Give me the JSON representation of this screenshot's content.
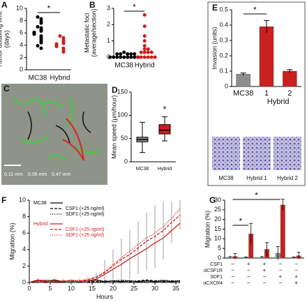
{
  "chart_data": [
    {
      "panel": "A",
      "type": "strip",
      "ylabel": [
        "Tumor doubling time",
        "(days)"
      ],
      "ylim": [
        0,
        10
      ],
      "yticks": [
        0,
        2,
        4,
        6,
        8,
        10
      ],
      "significance": "*",
      "series": [
        {
          "name": "MC38",
          "color": "#000000",
          "values": [
            8.6,
            8.3,
            7.9,
            7.6,
            7.0,
            6.8,
            6.5,
            6.3,
            6.1,
            6.0,
            5.8,
            5.5,
            5.3,
            5.0,
            4.7,
            4.4,
            3.9,
            3.5
          ]
        },
        {
          "name": "Hybrid",
          "color": "#cc1f1f",
          "values": [
            5.5,
            5.2,
            4.8,
            4.5,
            4.3,
            4.2,
            4.0,
            3.8,
            3.5,
            3.2,
            2.9
          ]
        }
      ]
    },
    {
      "panel": "B",
      "type": "strip",
      "ylabel": [
        "Metastatic foci",
        "(average/section)"
      ],
      "ylim": [
        0,
        3
      ],
      "yticks": [
        0,
        1,
        2,
        3
      ],
      "significance": "*",
      "series": [
        {
          "name": "MC38",
          "color": "#000000",
          "values": [
            0.3,
            0.2,
            0.2,
            0.2,
            0.2,
            0.2,
            0,
            0,
            0,
            0,
            0,
            0,
            0,
            0,
            0
          ]
        },
        {
          "name": "Hybrid",
          "color": "#cc1f1f",
          "values": [
            2.6,
            1.9,
            1.3,
            1.0,
            0.7,
            0.5,
            0.5,
            0.3,
            0.3,
            0.3,
            0.3,
            0,
            0,
            0,
            0,
            0,
            0
          ]
        }
      ]
    },
    {
      "panel": "C",
      "type": "image",
      "scale_labels": [
        "0.11 mm",
        "0.06 mm",
        "0.47 mm"
      ]
    },
    {
      "panel": "D",
      "type": "box",
      "ylabel": [
        "Mean speed (µm/hour)"
      ],
      "ylim": [
        0,
        150
      ],
      "yticks": [
        0,
        50,
        100,
        150
      ],
      "significance": "*",
      "categories": [
        "MC38",
        "Hybrid"
      ],
      "boxes": [
        {
          "min": 20,
          "q1": 43,
          "median": 48,
          "q3": 53,
          "max": 85,
          "color": "#8c8c8c"
        },
        {
          "min": 45,
          "q1": 60,
          "median": 68,
          "q3": 80,
          "max": 97,
          "color": "#cc1f1f"
        }
      ]
    },
    {
      "panel": "E",
      "type": "bar",
      "ylabel": [
        "Invasion (units)"
      ],
      "ylim": [
        0,
        0.5
      ],
      "yticks": [
        0,
        0.1,
        0.2,
        0.3,
        0.4,
        0.5
      ],
      "significance": "*",
      "categories": [
        "MC38",
        "1",
        "2"
      ],
      "group_label": "Hybrid",
      "values": [
        0.08,
        0.39,
        0.1
      ],
      "errors": [
        0.008,
        0.04,
        0.01
      ],
      "colors": [
        "#8c8c8c",
        "#cc1f1f",
        "#cc1f1f"
      ],
      "image_labels": [
        "MC38",
        "Hybrid 1",
        "Hybrid 2"
      ]
    },
    {
      "panel": "F",
      "type": "line",
      "ylabel": [
        "Migration (%)"
      ],
      "xlabel": "Hours",
      "xlim": [
        0,
        36
      ],
      "xticks": [
        0,
        5,
        10,
        15,
        20,
        25,
        30,
        35
      ],
      "ylim": [
        0,
        10
      ],
      "yticks": [
        0,
        2,
        4,
        6,
        8,
        10
      ],
      "x": [
        0,
        2,
        4,
        6,
        8,
        10,
        12,
        14,
        16,
        18,
        20,
        22,
        24,
        26,
        28,
        30,
        32,
        34,
        36
      ],
      "series": [
        {
          "name": "MC38",
          "color": "#000000",
          "dash": "solid",
          "values": [
            0,
            0.2,
            0.1,
            0.3,
            0.1,
            0.2,
            0.1,
            0.2,
            0.3,
            0.1,
            0.2,
            0.1,
            0.2,
            0.1,
            0.2,
            0.1,
            0.2,
            0.1,
            0.2
          ]
        },
        {
          "name": "CSF1 (+25 ng/ml)",
          "color": "#000000",
          "dash": "dashed",
          "values": [
            0,
            0.3,
            0.2,
            0.1,
            0.2,
            0.1,
            0.2,
            0.1,
            0.1,
            0.2,
            0.1,
            0.2,
            0.1,
            0.2,
            0.3,
            0.2,
            0.1,
            0.2,
            0.1
          ]
        },
        {
          "name": "SDF1 (+25 ng/ml)",
          "color": "#000000",
          "dash": "dotted",
          "values": [
            0,
            0.1,
            0.3,
            0.2,
            0.1,
            0.3,
            0.2,
            0.2,
            0.1,
            0.1,
            0.2,
            0.3,
            0.2,
            0.1,
            0.1,
            0.2,
            0.3,
            0.2,
            0.2
          ]
        },
        {
          "name": "Hybrid",
          "color": "#cc1f1f",
          "dash": "solid",
          "values": [
            0,
            0.3,
            0.2,
            0.1,
            0.1,
            0.2,
            0.1,
            0.2,
            0.4,
            1.0,
            1.6,
            2.2,
            2.9,
            3.5,
            4.1,
            4.8,
            5.4,
            6.3,
            7.2
          ]
        },
        {
          "name": "CSF1 (+25 ng/ml)",
          "color": "#cc1f1f",
          "dash": "dashed",
          "values": [
            0,
            0.2,
            0.1,
            0.2,
            0.2,
            0.1,
            0.2,
            0.3,
            0.6,
            1.2,
            2.0,
            2.8,
            3.4,
            4.2,
            5.0,
            5.6,
            6.3,
            7.3,
            8.2
          ],
          "errors": [
            0,
            0.3,
            0.3,
            0.3,
            0.3,
            0.3,
            0.3,
            0.4,
            0.6,
            1.5,
            2.0,
            2.5,
            3.0,
            3.2,
            3.5,
            3.8,
            3.5,
            2.5,
            1.8
          ]
        },
        {
          "name": "SDF1 (+25 ng/ml)",
          "color": "#cc1f1f",
          "dash": "dotted",
          "values": [
            0,
            0.2,
            0.2,
            0.1,
            0.2,
            0.2,
            0.2,
            0.4,
            0.7,
            1.3,
            2.2,
            3.0,
            3.8,
            4.6,
            5.4,
            6.0,
            6.8,
            7.8,
            9.0
          ]
        }
      ]
    },
    {
      "panel": "G",
      "type": "grouped_bar",
      "ylabel": [
        "Migration (%)"
      ],
      "ylim": [
        0,
        30
      ],
      "yticks": [
        0,
        5,
        10,
        15,
        20,
        25,
        30
      ],
      "significance": [
        "*",
        "*"
      ],
      "series": [
        {
          "color": "#8c8c8c",
          "values": [
            0.3,
            0.3,
            0.3,
            2.5,
            0.3
          ],
          "errors": [
            0.5,
            0.3,
            0.5,
            3.5,
            0.3
          ]
        },
        {
          "color": "#cc1f1f",
          "values": [
            0.8,
            12.5,
            4.5,
            27.5,
            1.2
          ],
          "errors": [
            1.5,
            5.5,
            3.5,
            3.0,
            1.8
          ]
        }
      ],
      "conditions": [
        {
          "label": "CSF1",
          "marks": [
            "−",
            "+",
            "+",
            "−",
            "−"
          ]
        },
        {
          "label": "αCSF1R",
          "marks": [
            "−",
            "−",
            "+",
            "−",
            "−"
          ]
        },
        {
          "label": "SDF1",
          "marks": [
            "−",
            "−",
            "−",
            "+",
            "+"
          ]
        },
        {
          "label": "αCXCR4",
          "marks": [
            "−",
            "−",
            "−",
            "−",
            "+"
          ]
        }
      ]
    }
  ]
}
